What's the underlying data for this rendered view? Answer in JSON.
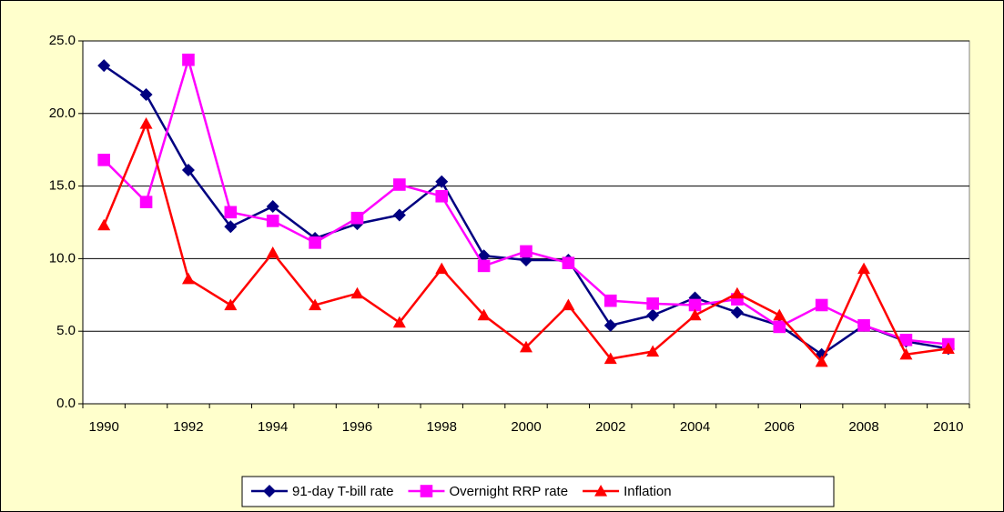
{
  "chart_data": {
    "type": "line",
    "categories": [
      "1990",
      null,
      "1992",
      null,
      "1994",
      null,
      "1996",
      null,
      "1998",
      null,
      "2000",
      null,
      "2002",
      null,
      "2004",
      null,
      "2006",
      null,
      "2008",
      null,
      "2010"
    ],
    "series": [
      {
        "name": "91-day T-bill rate",
        "color": "#000080",
        "marker": "diamond",
        "values": [
          23.3,
          21.3,
          16.1,
          12.2,
          13.6,
          11.4,
          12.4,
          13.0,
          15.3,
          10.2,
          9.9,
          9.9,
          5.4,
          6.1,
          7.3,
          6.3,
          5.4,
          3.4,
          5.4,
          4.3,
          3.8
        ]
      },
      {
        "name": "Overnight RRP rate",
        "color": "#ff00ff",
        "marker": "square",
        "values": [
          16.8,
          13.9,
          23.7,
          13.2,
          12.6,
          11.1,
          12.8,
          15.1,
          14.3,
          9.5,
          10.5,
          9.7,
          7.1,
          6.9,
          6.8,
          7.2,
          5.3,
          6.8,
          5.4,
          4.4,
          4.1
        ]
      },
      {
        "name": "Inflation",
        "color": "#ff0000",
        "marker": "triangle",
        "values": [
          12.3,
          19.3,
          8.6,
          6.8,
          10.4,
          6.8,
          7.6,
          5.6,
          9.3,
          6.1,
          3.9,
          6.8,
          3.1,
          3.6,
          6.1,
          7.6,
          6.1,
          2.9,
          9.3,
          3.4,
          3.8
        ]
      }
    ],
    "ylim": [
      0,
      25
    ],
    "yticks": [
      {
        "value": 0,
        "label": "0.0"
      },
      {
        "value": 5,
        "label": "5.0"
      },
      {
        "value": 10,
        "label": "10.0"
      },
      {
        "value": 15,
        "label": "15.0"
      },
      {
        "value": 20,
        "label": "20.0"
      },
      {
        "value": 25,
        "label": "25.0"
      }
    ],
    "grid": true,
    "legend": "bottom"
  }
}
